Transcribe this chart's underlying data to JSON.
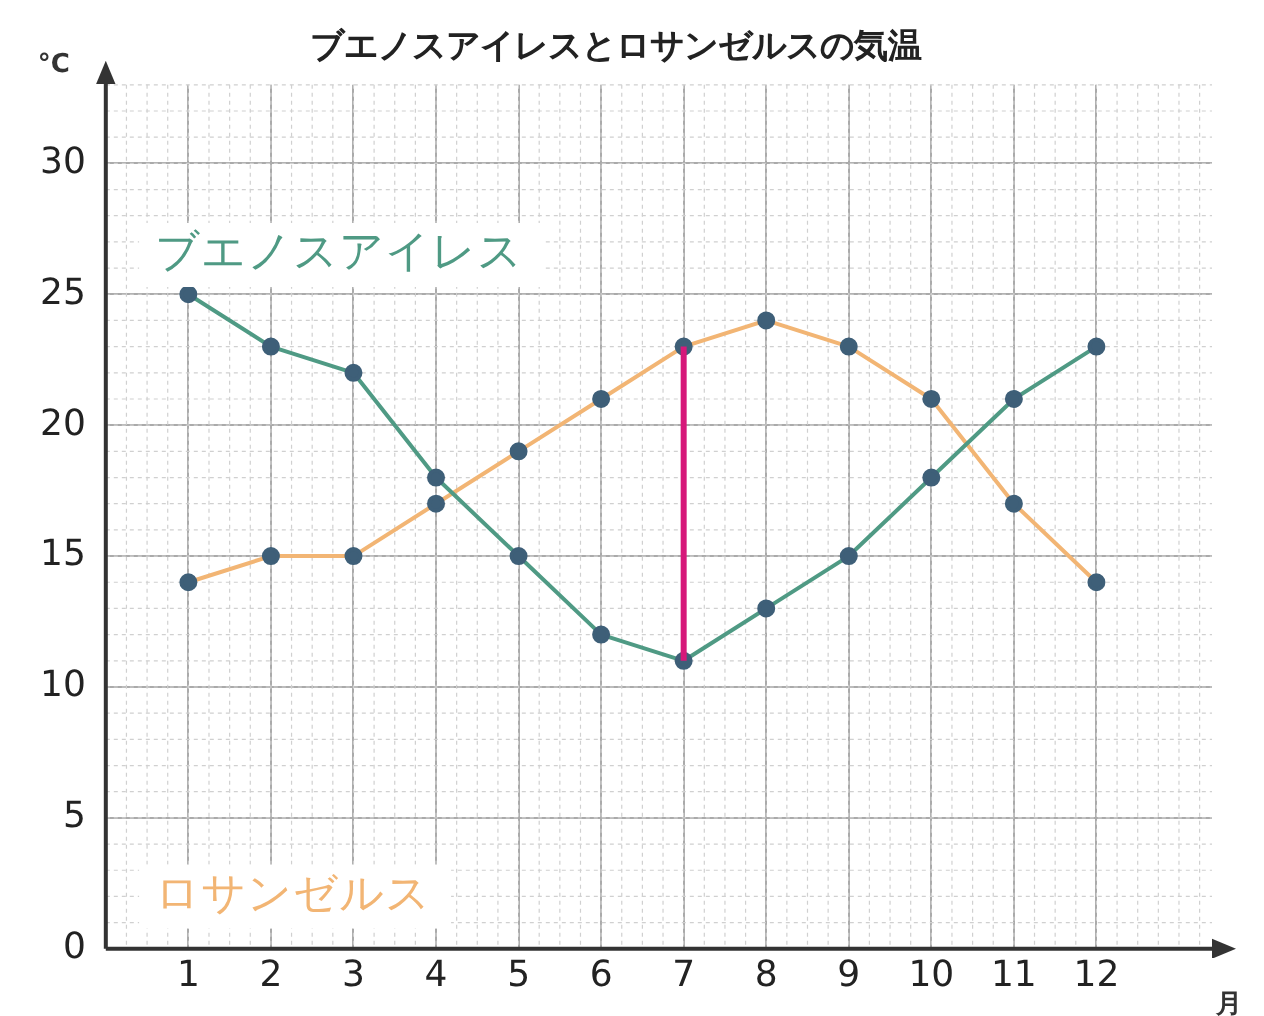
{
  "chart_data": {
    "type": "line",
    "title": "ブエノスアイレスとロサンゼルスの気温",
    "xlabel": "月",
    "ylabel": "°C",
    "x": [
      1,
      2,
      3,
      4,
      5,
      6,
      7,
      8,
      9,
      10,
      11,
      12
    ],
    "series": [
      {
        "name": "ブエノスアイレス",
        "color": "#4f9a84",
        "values": [
          25,
          23,
          22,
          18,
          15,
          12,
          11,
          13,
          15,
          18,
          21,
          23
        ]
      },
      {
        "name": "ロサンゼルス",
        "color": "#f2b574",
        "values": [
          14,
          15,
          15,
          17,
          19,
          21,
          23,
          24,
          23,
          21,
          17,
          14
        ]
      },
      {
        "type": "line",
        "x": [
          7,
          7
        ],
        "color": "#d6187a",
        "values": [
          11,
          23
        ],
        "marker": "none"
      }
    ],
    "xlim": [
      0,
      13.4
    ],
    "xticks": [
      1,
      2,
      3,
      4,
      5,
      6,
      7,
      8,
      9,
      10,
      11,
      12
    ],
    "ylim": [
      0,
      33
    ],
    "yticks": [
      0,
      5,
      10,
      15,
      20,
      25,
      30
    ],
    "grid": true,
    "marker": "circle",
    "legend": false
  }
}
